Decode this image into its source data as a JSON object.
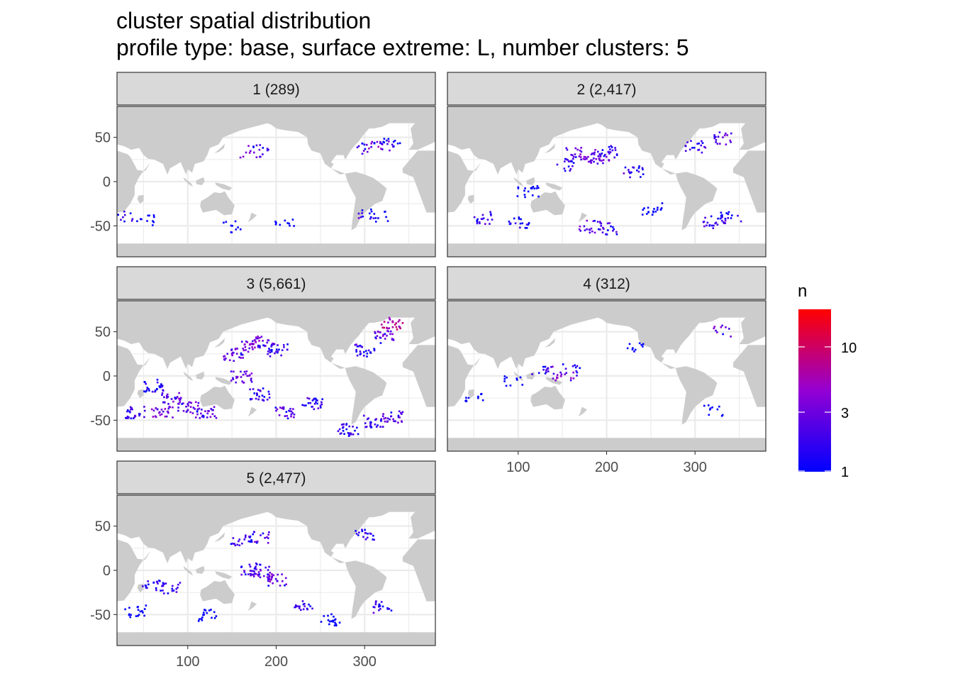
{
  "chart_data": {
    "type": "heatmap",
    "title": "cluster spatial distribution",
    "subtitle": "profile type: base, surface extreme: L, number clusters: 5",
    "xlabel": "",
    "ylabel": "",
    "xlim": [
      20,
      380
    ],
    "ylim": [
      -85,
      85
    ],
    "x_ticks": [
      100,
      200,
      300
    ],
    "y_ticks": [
      50,
      0,
      -50
    ],
    "x_tick_labels": [
      "100",
      "200",
      "300"
    ],
    "y_tick_labels": [
      "50",
      "0",
      "-50"
    ],
    "grid": true,
    "theme": "bw",
    "land_color": "#cccccc",
    "facets": [
      {
        "label": "1 (289)",
        "cluster": 1,
        "count": 289,
        "hotspots": [
          {
            "lon": 170,
            "lat": 35,
            "n": 3
          },
          {
            "lon": 185,
            "lat": 36,
            "n": 2
          },
          {
            "lon": 310,
            "lat": 40,
            "n": 4
          },
          {
            "lon": 322,
            "lat": 42,
            "n": 3
          },
          {
            "lon": 300,
            "lat": 38,
            "n": 2
          },
          {
            "lon": 330,
            "lat": 48,
            "n": 1
          },
          {
            "lon": 30,
            "lat": -38,
            "n": 2
          },
          {
            "lon": 55,
            "lat": -42,
            "n": 1
          },
          {
            "lon": 300,
            "lat": -36,
            "n": 2
          },
          {
            "lon": 315,
            "lat": -38,
            "n": 1
          },
          {
            "lon": 150,
            "lat": -50,
            "n": 1
          },
          {
            "lon": 210,
            "lat": -48,
            "n": 1
          }
        ]
      },
      {
        "label": "2 (2,417)",
        "cluster": 2,
        "count": 2417,
        "hotspots": [
          {
            "lon": 165,
            "lat": 33,
            "n": 3
          },
          {
            "lon": 180,
            "lat": 30,
            "n": 4
          },
          {
            "lon": 190,
            "lat": 28,
            "n": 3
          },
          {
            "lon": 150,
            "lat": 20,
            "n": 2
          },
          {
            "lon": 200,
            "lat": 35,
            "n": 2
          },
          {
            "lon": 230,
            "lat": 12,
            "n": 2
          },
          {
            "lon": 330,
            "lat": 50,
            "n": 3
          },
          {
            "lon": 300,
            "lat": 40,
            "n": 2
          },
          {
            "lon": 180,
            "lat": -50,
            "n": 3
          },
          {
            "lon": 200,
            "lat": -52,
            "n": 2
          },
          {
            "lon": 60,
            "lat": -40,
            "n": 2
          },
          {
            "lon": 100,
            "lat": -45,
            "n": 2
          },
          {
            "lon": 320,
            "lat": -45,
            "n": 2
          },
          {
            "lon": 340,
            "lat": -40,
            "n": 2
          },
          {
            "lon": 250,
            "lat": -30,
            "n": 1
          },
          {
            "lon": 110,
            "lat": -10,
            "n": 1
          }
        ]
      },
      {
        "label": "3 (5,661)",
        "cluster": 3,
        "count": 5661,
        "hotspots": [
          {
            "lon": 170,
            "lat": 35,
            "n": 4
          },
          {
            "lon": 185,
            "lat": 40,
            "n": 3
          },
          {
            "lon": 150,
            "lat": 25,
            "n": 3
          },
          {
            "lon": 200,
            "lat": 30,
            "n": 2
          },
          {
            "lon": 330,
            "lat": 60,
            "n": 8
          },
          {
            "lon": 320,
            "lat": 45,
            "n": 3
          },
          {
            "lon": 300,
            "lat": 30,
            "n": 2
          },
          {
            "lon": 60,
            "lat": -10,
            "n": 2
          },
          {
            "lon": 80,
            "lat": -25,
            "n": 3
          },
          {
            "lon": 100,
            "lat": -35,
            "n": 3
          },
          {
            "lon": 70,
            "lat": -40,
            "n": 4
          },
          {
            "lon": 120,
            "lat": -40,
            "n": 3
          },
          {
            "lon": 160,
            "lat": 0,
            "n": 3
          },
          {
            "lon": 180,
            "lat": -20,
            "n": 2
          },
          {
            "lon": 210,
            "lat": -40,
            "n": 3
          },
          {
            "lon": 240,
            "lat": -30,
            "n": 2
          },
          {
            "lon": 330,
            "lat": -45,
            "n": 3
          },
          {
            "lon": 310,
            "lat": -50,
            "n": 2
          },
          {
            "lon": 280,
            "lat": -60,
            "n": 2
          },
          {
            "lon": 40,
            "lat": -40,
            "n": 2
          }
        ]
      },
      {
        "label": "4 (312)",
        "cluster": 4,
        "count": 312,
        "hotspots": [
          {
            "lon": 140,
            "lat": 5,
            "n": 3
          },
          {
            "lon": 150,
            "lat": 3,
            "n": 4
          },
          {
            "lon": 125,
            "lat": 8,
            "n": 2
          },
          {
            "lon": 160,
            "lat": 8,
            "n": 2
          },
          {
            "lon": 330,
            "lat": 52,
            "n": 3
          },
          {
            "lon": 95,
            "lat": -5,
            "n": 1
          },
          {
            "lon": 50,
            "lat": -25,
            "n": 1
          },
          {
            "lon": 320,
            "lat": -38,
            "n": 1
          },
          {
            "lon": 230,
            "lat": 35,
            "n": 1
          }
        ]
      },
      {
        "label": "5 (2,477)",
        "cluster": 5,
        "count": 2477,
        "hotspots": [
          {
            "lon": 180,
            "lat": 0,
            "n": 3
          },
          {
            "lon": 190,
            "lat": -5,
            "n": 4
          },
          {
            "lon": 200,
            "lat": -10,
            "n": 3
          },
          {
            "lon": 170,
            "lat": 2,
            "n": 2
          },
          {
            "lon": 160,
            "lat": 35,
            "n": 2
          },
          {
            "lon": 180,
            "lat": 38,
            "n": 3
          },
          {
            "lon": 300,
            "lat": 40,
            "n": 2
          },
          {
            "lon": 60,
            "lat": -15,
            "n": 2
          },
          {
            "lon": 80,
            "lat": -20,
            "n": 2
          },
          {
            "lon": 230,
            "lat": -40,
            "n": 2
          },
          {
            "lon": 320,
            "lat": -40,
            "n": 2
          },
          {
            "lon": 120,
            "lat": -50,
            "n": 1
          },
          {
            "lon": 260,
            "lat": -55,
            "n": 1
          },
          {
            "lon": 40,
            "lat": -45,
            "n": 1
          }
        ]
      }
    ],
    "legend": {
      "title": "n",
      "scale": "log",
      "breaks": [
        1,
        3,
        10
      ],
      "break_labels": [
        "1",
        "3",
        "10"
      ],
      "limits": [
        1,
        20
      ],
      "low_color": "#0000ff",
      "mid_color": "#9400d3",
      "high_color": "#ff0000",
      "placement": "right"
    }
  }
}
